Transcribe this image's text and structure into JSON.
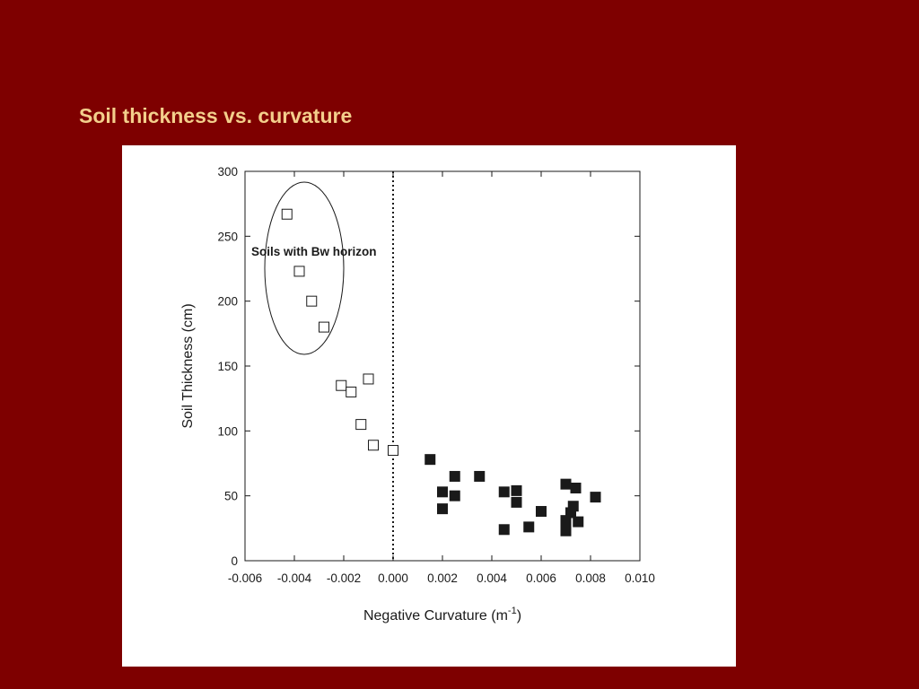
{
  "slide": {
    "title": "Soil thickness vs. curvature",
    "background_color": "#7e0000",
    "title_color": "#f3cf8c"
  },
  "chart_data": {
    "type": "scatter",
    "xlabel": "Negative Curvature (m",
    "xlabel_superscript": "-1",
    "xlabel_close": ")",
    "ylabel": "Soil Thickness (cm)",
    "xlim": [
      -0.006,
      0.01
    ],
    "ylim": [
      0,
      300
    ],
    "x_ticks": [
      "-0.006",
      "-0.004",
      "-0.002",
      "0.000",
      "0.002",
      "0.004",
      "0.006",
      "0.008",
      "0.010"
    ],
    "y_ticks": [
      "0",
      "50",
      "100",
      "150",
      "200",
      "250",
      "300"
    ],
    "grid": false,
    "reference_line": {
      "x": 0.0,
      "style": "dotted"
    },
    "annotation": "Soils with Bw horizon",
    "series": [
      {
        "marker": "open-square",
        "points": [
          [
            -0.0043,
            267
          ],
          [
            -0.0038,
            223
          ],
          [
            -0.0033,
            200
          ],
          [
            -0.0028,
            180
          ],
          [
            -0.0021,
            135
          ],
          [
            -0.0017,
            130
          ],
          [
            -0.001,
            140
          ],
          [
            -0.0013,
            105
          ],
          [
            -0.0008,
            89
          ],
          [
            0.0,
            85
          ]
        ]
      },
      {
        "marker": "filled-square",
        "points": [
          [
            0.0015,
            78
          ],
          [
            0.002,
            53
          ],
          [
            0.002,
            40
          ],
          [
            0.0025,
            65
          ],
          [
            0.0025,
            50
          ],
          [
            0.0035,
            65
          ],
          [
            0.0045,
            53
          ],
          [
            0.0045,
            24
          ],
          [
            0.005,
            54
          ],
          [
            0.005,
            45
          ],
          [
            0.0055,
            26
          ],
          [
            0.006,
            38
          ],
          [
            0.007,
            59
          ],
          [
            0.0074,
            56
          ],
          [
            0.007,
            31
          ],
          [
            0.0072,
            37
          ],
          [
            0.0073,
            42
          ],
          [
            0.007,
            27
          ],
          [
            0.0075,
            30
          ],
          [
            0.007,
            23
          ],
          [
            0.0082,
            49
          ]
        ]
      }
    ]
  }
}
